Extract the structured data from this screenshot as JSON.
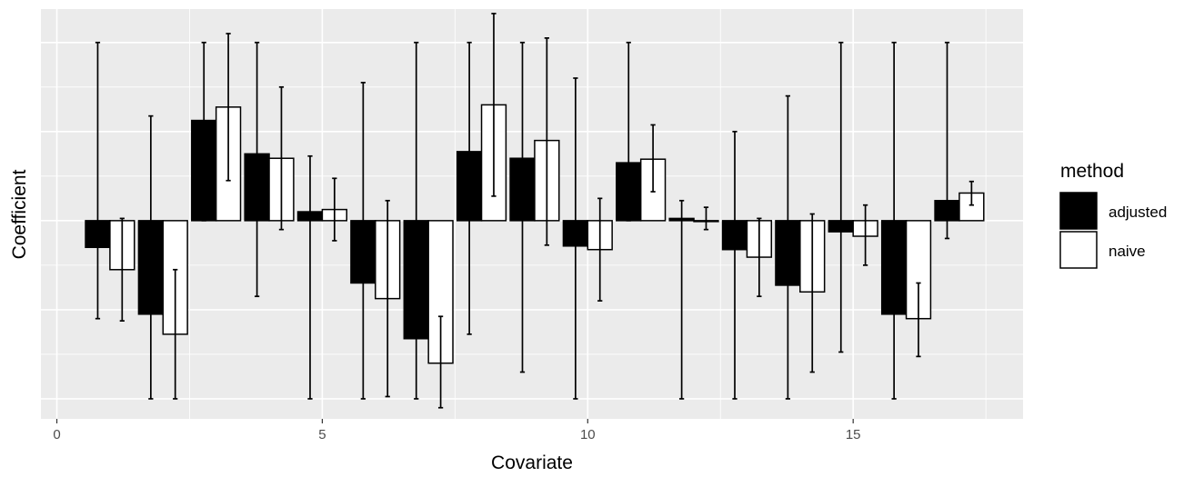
{
  "chart_data": {
    "type": "bar",
    "xlabel": "Covariate",
    "ylabel": "Coefficient",
    "xlim": [
      -0.3,
      18.2
    ],
    "ylim": [
      -4.45,
      4.75
    ],
    "x_ticks": [
      0,
      5,
      10,
      15
    ],
    "y_ticks_shown": false,
    "grid": true,
    "legend": {
      "title": "method",
      "position": "right"
    },
    "series": [
      {
        "name": "adjusted",
        "color": "#000000",
        "values": [
          -0.6,
          -2.1,
          2.25,
          1.5,
          0.2,
          -1.4,
          -2.65,
          1.55,
          1.4,
          -0.57,
          1.3,
          0.05,
          -0.65,
          -1.45,
          -0.25,
          -2.1,
          0.45
        ],
        "err_low": [
          -2.2,
          -4.0,
          0.0,
          -1.7,
          -4.0,
          -4.0,
          -4.0,
          -2.55,
          -3.4,
          -4.0,
          0.0,
          -4.0,
          -4.0,
          -4.0,
          -2.95,
          -4.0,
          -0.4
        ],
        "err_high": [
          4.0,
          2.35,
          4.0,
          4.0,
          1.45,
          3.1,
          4.0,
          4.0,
          4.0,
          3.2,
          4.0,
          0.45,
          2.0,
          2.8,
          4.0,
          4.0,
          4.0
        ]
      },
      {
        "name": "naive",
        "color": "#ffffff",
        "values": [
          -1.1,
          -2.55,
          2.55,
          1.4,
          0.25,
          -1.75,
          -3.2,
          2.6,
          1.8,
          -0.65,
          1.38,
          0.0,
          -0.82,
          -1.6,
          -0.35,
          -2.2,
          0.62
        ],
        "err_low": [
          -2.25,
          -4.0,
          0.9,
          -0.2,
          -0.45,
          -3.95,
          -4.2,
          0.55,
          -0.55,
          -1.8,
          0.65,
          -0.2,
          -1.7,
          -3.4,
          -1.0,
          -3.05,
          0.35
        ],
        "err_high": [
          0.05,
          -1.1,
          4.2,
          3.0,
          0.95,
          0.45,
          -2.15,
          4.65,
          4.1,
          0.5,
          2.15,
          0.3,
          0.05,
          0.15,
          0.35,
          -1.4,
          0.88
        ]
      }
    ]
  }
}
